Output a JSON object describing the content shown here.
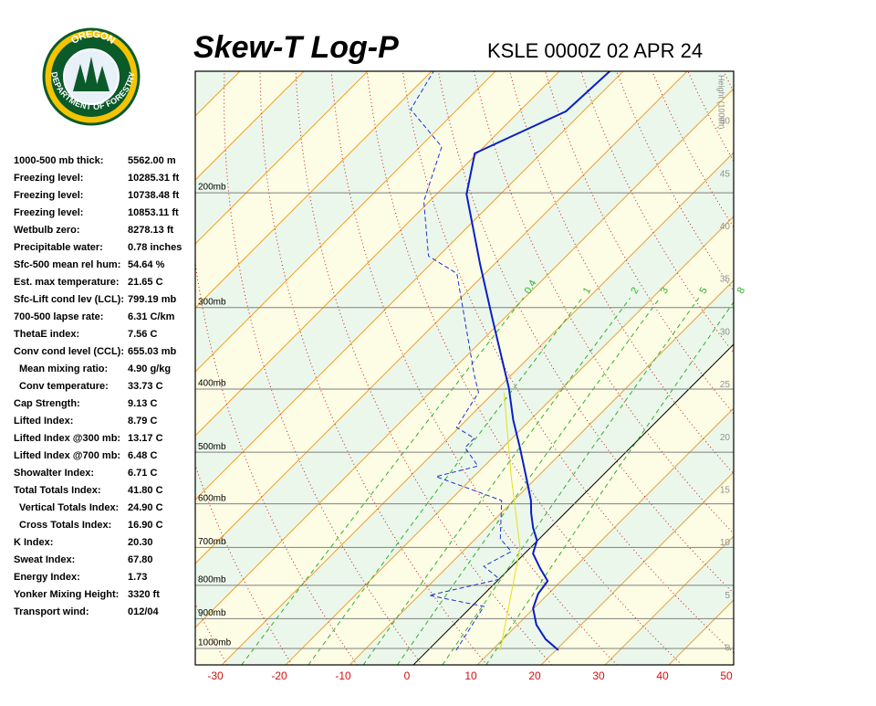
{
  "logo": {
    "top": "OREGON",
    "bottom": "DEPARTMENT OF FORESTRY"
  },
  "title": "Skew-T Log-P",
  "station": "KSLE 0000Z 02 APR 24",
  "indices": [
    {
      "label": "1000-500 mb thick:",
      "value": "5562.00 m"
    },
    {
      "label": "Freezing level:",
      "value": "10285.31 ft"
    },
    {
      "label": "Freezing level:",
      "value": "10738.48 ft"
    },
    {
      "label": "Freezing level:",
      "value": "10853.11 ft"
    },
    {
      "label": "Wetbulb zero:",
      "value": "8278.13 ft"
    },
    {
      "label": "Precipitable water:",
      "value": "0.78 inches"
    },
    {
      "label": "Sfc-500 mean rel hum:",
      "value": "54.64 %"
    },
    {
      "label": "Est. max temperature:",
      "value": "21.65 C"
    },
    {
      "label": "Sfc-Lift cond lev (LCL):",
      "value": "799.19 mb"
    },
    {
      "label": "700-500 lapse rate:",
      "value": "6.31 C/km"
    },
    {
      "label": "ThetaE index:",
      "value": "7.56 C"
    },
    {
      "label": "Conv cond level (CCL):",
      "value": "655.03 mb"
    },
    {
      "label": "Mean mixing ratio:",
      "value": "4.90 g/kg"
    },
    {
      "label": "Conv temperature:",
      "value": "33.73 C"
    },
    {
      "label": "Cap Strength:",
      "value": "9.13 C"
    },
    {
      "label": "Lifted Index:",
      "value": "8.79 C"
    },
    {
      "label": "Lifted Index @300 mb:",
      "value": "13.17 C"
    },
    {
      "label": "Lifted Index @700 mb:",
      "value": "6.48 C"
    },
    {
      "label": "Showalter Index:",
      "value": "6.71 C"
    },
    {
      "label": "Total Totals Index:",
      "value": "41.80 C"
    },
    {
      "label": "Vertical Totals Index:",
      "value": "24.90 C"
    },
    {
      "label": "Cross Totals Index:",
      "value": "16.90 C"
    },
    {
      "label": "K Index:",
      "value": "20.30"
    },
    {
      "label": "Sweat Index:",
      "value": "67.80"
    },
    {
      "label": "Energy Index:",
      "value": "1.73"
    },
    {
      "label": "Yonker Mixing Height:",
      "value": "3320 ft"
    },
    {
      "label": "Transport wind:",
      "value": "012/04"
    }
  ],
  "chart_data": {
    "type": "skewt",
    "pressure_levels": [
      {
        "value": 200,
        "label": "200mb"
      },
      {
        "value": 300,
        "label": "300mb"
      },
      {
        "value": 400,
        "label": "400mb"
      },
      {
        "value": 500,
        "label": "500mb"
      },
      {
        "value": 600,
        "label": "600mb"
      },
      {
        "value": 700,
        "label": "700mb"
      },
      {
        "value": 800,
        "label": "800mb"
      },
      {
        "value": 900,
        "label": "900mb"
      },
      {
        "value": 1000,
        "label": "1000mb"
      }
    ],
    "xticks": [
      -30,
      -20,
      -10,
      0,
      10,
      20,
      30,
      40,
      50
    ],
    "height_label": "Height (1000ft)",
    "height_ticks": [
      0,
      5,
      10,
      15,
      20,
      25,
      30,
      35,
      40,
      45,
      50
    ],
    "mixing_ratios": [
      0.4,
      1,
      2,
      3,
      5,
      8
    ],
    "series": [
      {
        "name": "Temperature",
        "color": "#0a1ec8",
        "pressure": [
          1006,
          968,
          920,
          868,
          824,
          788,
          753,
          715,
          683,
          653,
          620,
          593,
          542,
          492,
          446,
          399,
          313,
          258,
          201,
          174,
          150,
          130
        ],
        "values": [
          20.4,
          16.7,
          13.0,
          9.9,
          8.4,
          7.9,
          4.7,
          1.3,
          -0.1,
          -2.7,
          -5.3,
          -7.3,
          -12.1,
          -17.3,
          -22.7,
          -28.3,
          -41.6,
          -52.1,
          -65.3,
          -70.4,
          -62.7,
          -62.1
        ]
      },
      {
        "name": "Dewpoint",
        "color": "#2030d0",
        "pressure": [
          1006,
          862,
          829,
          783,
          748,
          710,
          679,
          593,
          545,
          525,
          492,
          476,
          458,
          405,
          380,
          266,
          250,
          206,
          170,
          149,
          130
        ],
        "values": [
          4.4,
          1.9,
          -8.4,
          0.1,
          -4.4,
          -2.4,
          -6.1,
          -11.9,
          -25.9,
          -21.0,
          -25.9,
          -25.9,
          -30.4,
          -32.4,
          -35.9,
          -54.4,
          -61.6,
          -70.9,
          -76.6,
          -87.3,
          -89.7
        ]
      },
      {
        "name": "Parcel",
        "color": "#e0e020",
        "pressure": [
          1006,
          701,
          542,
          405
        ],
        "values": [
          11.3,
          -1.6,
          -14.4,
          -28.4
        ]
      }
    ]
  }
}
